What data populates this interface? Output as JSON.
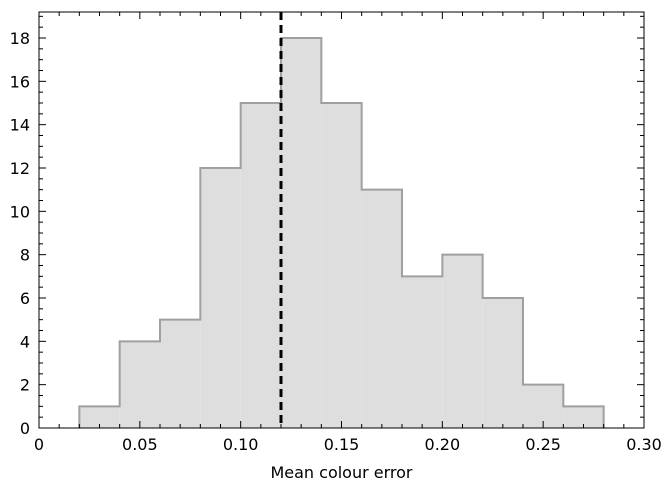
{
  "chart_data": {
    "type": "histogram",
    "xlabel": "Mean colour error",
    "ylabel": "",
    "title": "",
    "xlim": [
      0,
      0.3
    ],
    "ylim": [
      0,
      19.2
    ],
    "x_ticks": [
      "0",
      "0.05",
      "0.10",
      "0.15",
      "0.20",
      "0.25",
      "0.30"
    ],
    "y_ticks": [
      "0",
      "2",
      "4",
      "6",
      "8",
      "10",
      "12",
      "14",
      "16",
      "18"
    ],
    "bin_edges": [
      0.02,
      0.04,
      0.06,
      0.08,
      0.1,
      0.12,
      0.14,
      0.16,
      0.18,
      0.2,
      0.22,
      0.24,
      0.26,
      0.28
    ],
    "counts": [
      1,
      4,
      5,
      12,
      15,
      18,
      15,
      11,
      7,
      8,
      6,
      2,
      1
    ],
    "reference_line": {
      "x": 0.12,
      "style": "dashed"
    },
    "grid": false,
    "colors": {
      "fill": "#dedede",
      "edge": "#a0a0a0",
      "reference_line": "#000000",
      "frame": "#000000"
    }
  }
}
